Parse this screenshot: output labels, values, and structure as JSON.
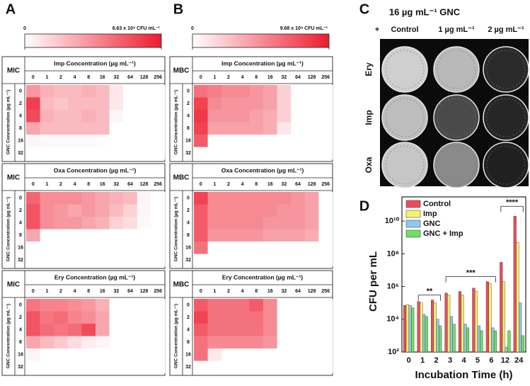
{
  "panel_labels": [
    "A",
    "B",
    "C",
    "D"
  ],
  "photo_panel": {
    "title": "16 µg mL⁻¹ GNC",
    "columns": [
      "+",
      "Control",
      "1 µg mL⁻¹",
      "2 µg mL⁻¹"
    ],
    "rows": [
      "Ery",
      "Imp",
      "Oxa"
    ]
  },
  "chart_data": [
    {
      "type": "heatmap",
      "clim": [
        0,
        663000000
      ],
      "cticks": [
        0,
        {
          "value": 663000000,
          "label": "6.63 x 10⁸ CFU mL⁻¹"
        }
      ],
      "color": "#ee1c2e",
      "grids": [
        {
          "row_label": "MIC",
          "title": "Imp Concentration (µg mL⁻¹)",
          "y_label": "GNC Concentration (µg mL⁻¹)",
          "x_categories": [
            0,
            1,
            2,
            4,
            8,
            16,
            32,
            64,
            128,
            256
          ],
          "y_categories": [
            0,
            2,
            4,
            8,
            16,
            32
          ],
          "values": [
            [
              300000000.0,
              230000000.0,
              200000000.0,
              200000000.0,
              230000000.0,
              200000000.0,
              70000000.0,
              0,
              0,
              0
            ],
            [
              560000000.0,
              200000000.0,
              170000000.0,
              200000000.0,
              200000000.0,
              200000000.0,
              70000000.0,
              0,
              0,
              0
            ],
            [
              530000000.0,
              230000000.0,
              200000000.0,
              200000000.0,
              230000000.0,
              200000000.0,
              30000000.0,
              0,
              0,
              0
            ],
            [
              260000000.0,
              200000000.0,
              200000000.0,
              200000000.0,
              200000000.0,
              200000000.0,
              0,
              0,
              0,
              0
            ],
            [
              30000000.0,
              20000000.0,
              20000000.0,
              20000000.0,
              20000000.0,
              10000000.0,
              0,
              0,
              0,
              0
            ],
            [
              0,
              0,
              0,
              0,
              0,
              0,
              0,
              0,
              0,
              0
            ]
          ]
        },
        {
          "row_label": "MIC",
          "title": "Oxa Concentration (µg mL⁻¹)",
          "y_label": "GNC Concentration (µg mL⁻¹)",
          "x_categories": [
            0,
            1,
            2,
            4,
            8,
            16,
            32,
            64,
            128,
            256
          ],
          "y_categories": [
            0,
            2,
            4,
            8,
            16,
            32
          ],
          "values": [
            [
              450000000.0,
              330000000.0,
              330000000.0,
              330000000.0,
              300000000.0,
              260000000.0,
              230000000.0,
              200000000.0,
              30000000.0,
              0
            ],
            [
              500000000.0,
              330000000.0,
              300000000.0,
              260000000.0,
              300000000.0,
              260000000.0,
              200000000.0,
              130000000.0,
              30000000.0,
              0
            ],
            [
              500000000.0,
              330000000.0,
              300000000.0,
              300000000.0,
              260000000.0,
              230000000.0,
              130000000.0,
              100000000.0,
              20000000.0,
              0
            ],
            [
              260000000.0,
              0,
              0,
              0,
              0,
              0,
              0,
              0,
              0,
              0
            ],
            [
              0,
              0,
              0,
              0,
              0,
              0,
              0,
              0,
              0,
              0
            ],
            [
              0,
              0,
              0,
              0,
              0,
              0,
              0,
              0,
              0,
              0
            ]
          ]
        },
        {
          "row_label": "MIC",
          "title": "Ery Concentration (µg mL⁻¹)",
          "y_label": "GNC Concentration (µg mL⁻¹)",
          "x_categories": [
            0,
            1,
            2,
            4,
            8,
            16,
            32,
            64,
            128,
            256
          ],
          "y_categories": [
            0,
            2,
            4,
            8,
            16,
            32
          ],
          "values": [
            [
              400000000.0,
              360000000.0,
              360000000.0,
              330000000.0,
              300000000.0,
              230000000.0,
              0,
              0,
              0,
              0
            ],
            [
              500000000.0,
              400000000.0,
              430000000.0,
              360000000.0,
              330000000.0,
              260000000.0,
              0,
              0,
              0,
              0
            ],
            [
              500000000.0,
              430000000.0,
              400000000.0,
              430000000.0,
              530000000.0,
              260000000.0,
              0,
              0,
              0,
              0
            ],
            [
              260000000.0,
              200000000.0,
              160000000.0,
              100000000.0,
              50000000.0,
              30000000.0,
              0,
              0,
              0,
              0
            ],
            [
              30000000.0,
              0,
              0,
              0,
              0,
              0,
              0,
              0,
              0,
              0
            ],
            [
              0,
              0,
              0,
              0,
              0,
              0,
              0,
              0,
              0,
              0
            ]
          ]
        }
      ]
    },
    {
      "type": "heatmap",
      "clim": [
        0,
        968000000
      ],
      "cticks": [
        0,
        {
          "value": 968000000,
          "label": "9.68 x 10⁸ CFU mL⁻¹"
        }
      ],
      "color": "#ee1c2e",
      "grids": [
        {
          "row_label": "MBC",
          "title": "Imp Concentration (µg mL⁻¹)",
          "y_label": "GNC Concentration (µg mL⁻¹)",
          "x_categories": [
            0,
            1,
            2,
            4,
            8,
            16,
            32,
            64,
            128,
            256
          ],
          "y_categories": [
            0,
            2,
            4,
            8,
            16,
            32
          ],
          "values": [
            [
              600000000.0,
              550000000.0,
              500000000.0,
              500000000.0,
              450000000.0,
              400000000.0,
              200000000.0,
              0,
              0,
              0
            ],
            [
              800000000.0,
              500000000.0,
              450000000.0,
              450000000.0,
              450000000.0,
              400000000.0,
              200000000.0,
              0,
              0,
              0
            ],
            [
              850000000.0,
              450000000.0,
              450000000.0,
              450000000.0,
              400000000.0,
              350000000.0,
              200000000.0,
              0,
              0,
              0
            ],
            [
              800000000.0,
              400000000.0,
              400000000.0,
              400000000.0,
              400000000.0,
              350000000.0,
              100000000.0,
              0,
              0,
              0
            ],
            [
              700000000.0,
              0,
              0,
              0,
              0,
              0,
              0,
              0,
              0,
              0
            ],
            [
              0,
              0,
              0,
              0,
              0,
              0,
              0,
              0,
              0,
              0
            ]
          ]
        },
        {
          "row_label": "MBC",
          "title": "Oxa Concentration (µg mL⁻¹)",
          "y_label": "GNC Concentration (µg mL⁻¹)",
          "x_categories": [
            0,
            1,
            2,
            4,
            8,
            16,
            32,
            64,
            128,
            256
          ],
          "y_categories": [
            0,
            2,
            4,
            8,
            16,
            32
          ],
          "values": [
            [
              800000000.0,
              500000000.0,
              500000000.0,
              500000000.0,
              500000000.0,
              500000000.0,
              500000000.0,
              450000000.0,
              400000000.0,
              0
            ],
            [
              700000000.0,
              500000000.0,
              500000000.0,
              500000000.0,
              500000000.0,
              500000000.0,
              450000000.0,
              450000000.0,
              400000000.0,
              0
            ],
            [
              700000000.0,
              500000000.0,
              500000000.0,
              500000000.0,
              500000000.0,
              450000000.0,
              450000000.0,
              450000000.0,
              400000000.0,
              0
            ],
            [
              700000000.0,
              450000000.0,
              450000000.0,
              450000000.0,
              450000000.0,
              400000000.0,
              400000000.0,
              400000000.0,
              350000000.0,
              0
            ],
            [
              600000000.0,
              0,
              0,
              0,
              0,
              0,
              0,
              0,
              0,
              0
            ],
            [
              0,
              0,
              0,
              0,
              0,
              0,
              0,
              0,
              0,
              0
            ]
          ]
        },
        {
          "row_label": "MBC",
          "title": "Ery Concentration (µg mL⁻¹)",
          "y_label": "GNC Concentration (µg mL⁻¹)",
          "x_categories": [
            0,
            1,
            2,
            4,
            8,
            16,
            32,
            64,
            128,
            256
          ],
          "y_categories": [
            0,
            2,
            4,
            8,
            16,
            32
          ],
          "values": [
            [
              700000000.0,
              600000000.0,
              600000000.0,
              600000000.0,
              700000000.0,
              500000000.0,
              0,
              0,
              0,
              0
            ],
            [
              800000000.0,
              600000000.0,
              600000000.0,
              600000000.0,
              600000000.0,
              500000000.0,
              0,
              0,
              0,
              0
            ],
            [
              700000000.0,
              600000000.0,
              600000000.0,
              600000000.0,
              600000000.0,
              500000000.0,
              0,
              0,
              0,
              0
            ],
            [
              600000000.0,
              500000000.0,
              500000000.0,
              500000000.0,
              500000000.0,
              450000000.0,
              0,
              0,
              0,
              0
            ],
            [
              600000000.0,
              100000000.0,
              0,
              0,
              0,
              0,
              0,
              0,
              0,
              0
            ],
            [
              0,
              0,
              0,
              0,
              0,
              0,
              0,
              0,
              0,
              0
            ]
          ]
        }
      ]
    },
    {
      "type": "bar",
      "log_y": true,
      "y_label": "CFU per mL",
      "x_label": "Incubation Time (h)",
      "legend": "upper left",
      "categories": [
        0,
        1,
        2,
        3,
        4,
        5,
        6,
        12,
        24
      ],
      "ylim": [
        100,
        300000000000
      ],
      "yticks": [
        {
          "value": 100,
          "label": "10²"
        },
        {
          "value": 10000,
          "label": "10⁴"
        },
        {
          "value": 1000000,
          "label": "10⁶"
        },
        {
          "value": 100000000,
          "label": "10⁸"
        },
        {
          "value": 10000000000,
          "label": "10¹⁰"
        }
      ],
      "annotations": [
        "**",
        "***",
        "****"
      ],
      "series": [
        {
          "name": "Control",
          "color": "#ec4d5d",
          "values": [
            70000,
            120000,
            150000,
            400000,
            500000,
            800000,
            2000000,
            30000000,
            20000000000
          ]
        },
        {
          "name": "Imp",
          "color": "#f4f46c",
          "values": [
            80000,
            100000,
            100000,
            300000,
            300000,
            500000,
            1500000,
            2000000,
            500000000
          ]
        },
        {
          "name": "GNC",
          "color": "#8fc8ea",
          "values": [
            70000,
            20000,
            10000,
            15000,
            5000,
            4000,
            3000,
            200,
            100000
          ]
        },
        {
          "name": "GNC + Imp",
          "color": "#6ee05c",
          "values": [
            50000,
            15000,
            4000,
            5000,
            3000,
            2000,
            2000,
            2000,
            1000
          ]
        }
      ]
    }
  ]
}
